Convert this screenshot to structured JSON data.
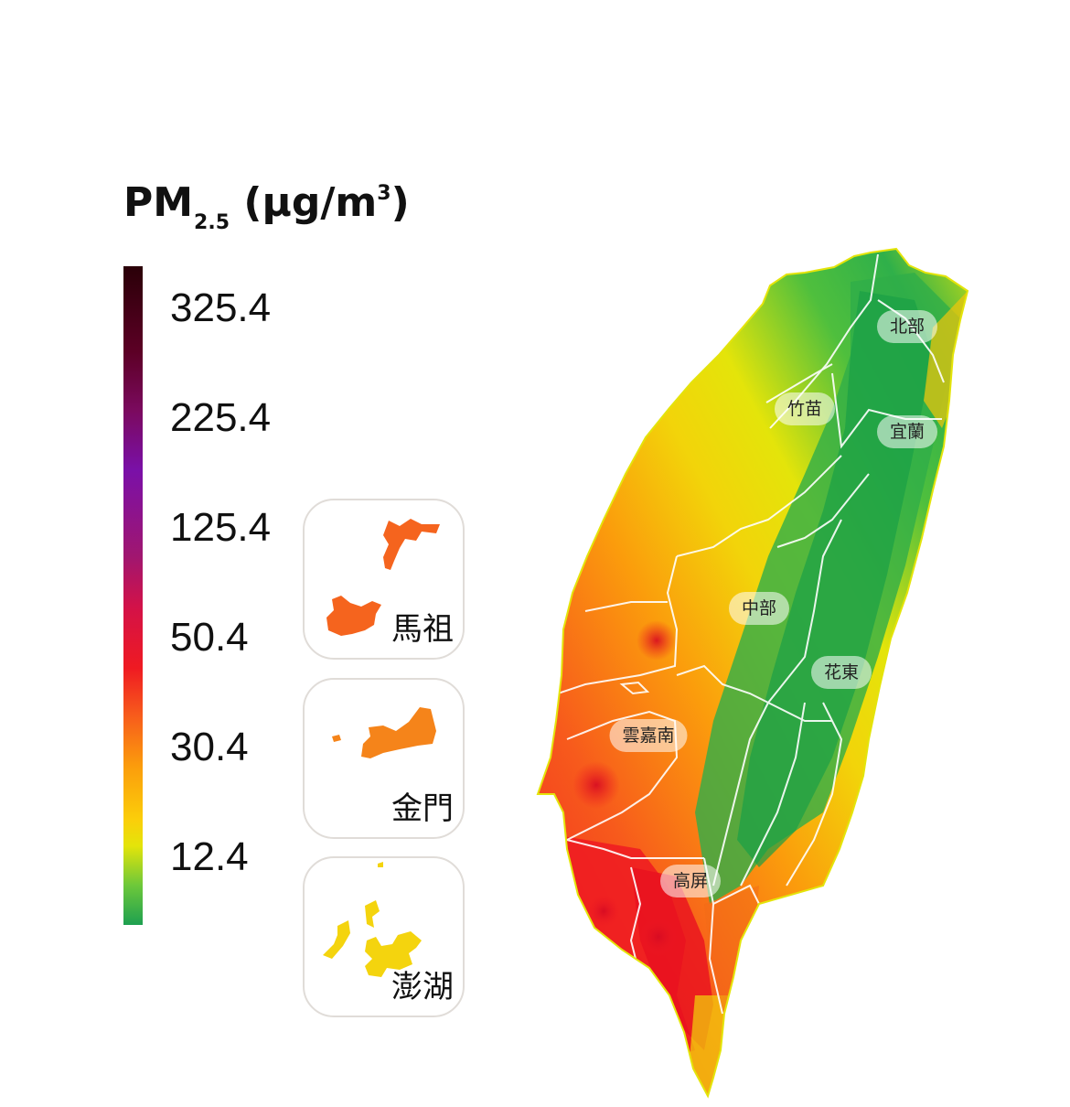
{
  "legend": {
    "title_main": "PM",
    "title_sub": "2.5",
    "title_unit_open": " (µg/m",
    "title_unit_sup": "3",
    "title_unit_close": ")",
    "ticks": [
      "325.4",
      "225.4",
      "125.4",
      "50.4",
      "30.4",
      "12.4"
    ]
  },
  "insets": [
    {
      "label": "馬祖",
      "color": "#f5641e"
    },
    {
      "label": "金門",
      "color": "#f5841a"
    },
    {
      "label": "澎湖",
      "color": "#f4d40e"
    }
  ],
  "regions": [
    "北部",
    "竹苗",
    "宜蘭",
    "中部",
    "花東",
    "雲嘉南",
    "高屏"
  ],
  "colors": {
    "low": "#1ea050",
    "moderate": "#e4e40a",
    "elevated": "#fb9d0c",
    "high": "#ef1a22",
    "very_high": "#7a10a8",
    "hazardous": "#2a0008"
  }
}
